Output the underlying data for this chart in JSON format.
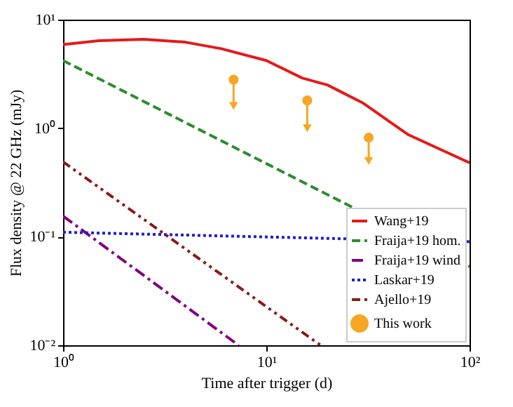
{
  "chart_data": {
    "type": "line",
    "xlabel": "Time after trigger (d)",
    "ylabel": "Flux density @ 22 GHz (mJy)",
    "log": "xy",
    "legend": "bottom right",
    "grid": false,
    "xlim": [
      1,
      100
    ],
    "xticks": [
      {
        "value": 1,
        "label": "10⁰"
      },
      {
        "value": 10,
        "label": "10¹"
      },
      {
        "value": 100,
        "label": "10²"
      }
    ],
    "ylim": [
      0.01,
      10
    ],
    "yticks": [
      {
        "value": 0.01,
        "label": "10⁻²"
      },
      {
        "value": 0.1,
        "label": "10⁻¹"
      },
      {
        "value": 1,
        "label": "10⁰"
      },
      {
        "value": 10,
        "label": "10¹"
      }
    ],
    "series": [
      {
        "name": "Wang+19",
        "line_style": "solid",
        "color": "#e41a1c",
        "x": [
          1,
          1.5,
          2.5,
          4,
          6,
          10,
          15,
          20,
          30,
          50,
          100
        ],
        "values": [
          5.9,
          6.4,
          6.6,
          6.2,
          5.4,
          4.2,
          2.9,
          2.5,
          1.7,
          0.87,
          0.48
        ]
      },
      {
        "name": "Fraija+19 hom.",
        "line_style": "dashed",
        "color": "#2e8b2e",
        "x": [
          1,
          100
        ],
        "values": [
          4.2,
          0.053
        ]
      },
      {
        "name": "Fraija+19 wind",
        "line_style": "dashdot",
        "color": "#800080",
        "x": [
          1,
          7.3
        ],
        "values": [
          0.155,
          0.01
        ]
      },
      {
        "name": "Laskar+19",
        "line_style": "dotted",
        "color": "#1f1fcc",
        "x": [
          1,
          100
        ],
        "values": [
          0.11,
          0.09
        ]
      },
      {
        "name": "Ajello+19",
        "line_style": "dashdotdot",
        "color": "#8b1a1a",
        "x": [
          1,
          18.5
        ],
        "values": [
          0.49,
          0.01
        ]
      },
      {
        "name": "This work",
        "type": "scatter",
        "marker": "circle",
        "color": "#f5a623",
        "x": [
          6.9,
          15.9,
          31.9
        ],
        "values": [
          2.8,
          1.8,
          0.82
        ],
        "errors": [
          [
            1.6,
            2.8
          ],
          [
            1.0,
            1.8
          ],
          [
            0.5,
            0.82
          ]
        ]
      }
    ]
  }
}
